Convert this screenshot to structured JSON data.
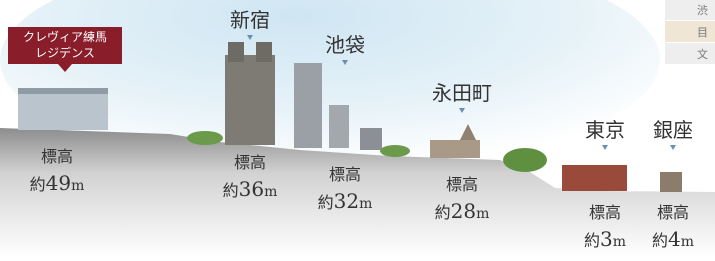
{
  "property_label": [
    "クレヴィア練馬",
    "レジデンス"
  ],
  "places": [
    {
      "name": null,
      "elevation_label": "標高",
      "prefix": "約",
      "value": 49,
      "unit": "m"
    },
    {
      "name": "新宿",
      "elevation_label": "標高",
      "prefix": "約",
      "value": 36,
      "unit": "m"
    },
    {
      "name": "池袋",
      "elevation_label": "標高",
      "prefix": "約",
      "value": 32,
      "unit": "m"
    },
    {
      "name": "永田町",
      "elevation_label": "標高",
      "prefix": "約",
      "value": 28,
      "unit": "m"
    },
    {
      "name": "東京",
      "elevation_label": "標高",
      "prefix": "約",
      "value": 3,
      "unit": "m"
    },
    {
      "name": "銀座",
      "elevation_label": "標高",
      "prefix": "約",
      "value": 4,
      "unit": "m"
    }
  ],
  "side_table": [
    "渋",
    "目",
    "文"
  ]
}
